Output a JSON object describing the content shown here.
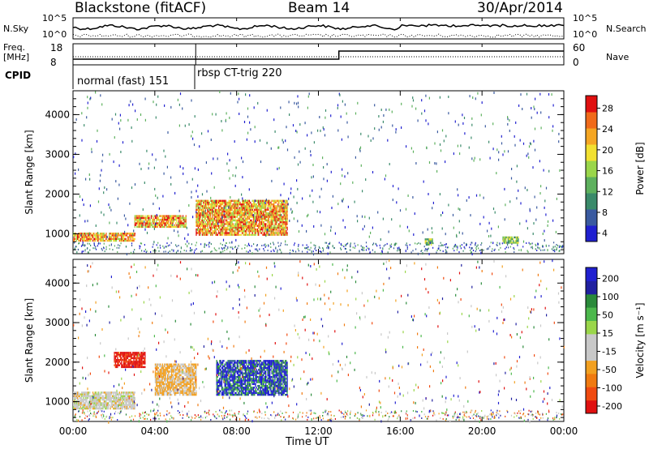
{
  "header": {
    "station": "Blackstone (fitACF)",
    "beam": "Beam 14",
    "date": "30/Apr/2014"
  },
  "panels": {
    "noise": {
      "left_label": "N.Sky",
      "right_label": "N.Search",
      "ticks_left": [
        "10^5",
        "10^0"
      ],
      "ticks_right": [
        "10^5",
        "10^0"
      ]
    },
    "freq": {
      "left_label_1": "Freq.",
      "left_label_2": "[MHz]",
      "right_label": "Nave",
      "ticks_left": [
        "18",
        "8"
      ],
      "ticks_right": [
        "60",
        "0"
      ]
    },
    "cpid": {
      "label": "CPID",
      "segments": [
        "normal (fast) 151",
        "rbsp CT-trig 220"
      ]
    }
  },
  "chart_data": [
    {
      "type": "heatmap",
      "name": "power",
      "ylabel": "Slant Range [km]",
      "yticks": [
        1000,
        2000,
        3000,
        4000
      ],
      "ylim": [
        500,
        4600
      ],
      "xlim": [
        0,
        24
      ],
      "colorbar": {
        "label": "Power [dB]",
        "ticks": [
          "28",
          "24",
          "20",
          "16",
          "12",
          "8",
          "4"
        ],
        "range": [
          0,
          30
        ],
        "colors": [
          "#2020d0",
          "#3a5aa0",
          "#3a8a6a",
          "#5db05d",
          "#9ad64a",
          "#f2e030",
          "#f5a623",
          "#f06a1a",
          "#e01010"
        ]
      },
      "features": [
        {
          "start_h": 0.0,
          "end_h": 3.0,
          "range_start_km": 850,
          "range_end_km": 1050,
          "level": "high"
        },
        {
          "start_h": 3.0,
          "end_h": 5.5,
          "range_start_km": 1200,
          "range_end_km": 1500,
          "level": "high"
        },
        {
          "start_h": 6.0,
          "end_h": 10.5,
          "range_start_km": 1000,
          "range_end_km": 1900,
          "level": "high"
        },
        {
          "start_h": 17.2,
          "end_h": 17.6,
          "range_start_km": 750,
          "range_end_km": 900,
          "level": "mid"
        },
        {
          "start_h": 21.0,
          "end_h": 21.8,
          "range_start_km": 800,
          "range_end_km": 950,
          "level": "mid"
        }
      ]
    },
    {
      "type": "heatmap",
      "name": "velocity",
      "ylabel": "Slant Range [km]",
      "yticks": [
        1000,
        2000,
        3000,
        4000
      ],
      "ylim": [
        500,
        4600
      ],
      "xlim": [
        0,
        24
      ],
      "colorbar": {
        "label": "Velocity [m s⁻¹]",
        "ticks": [
          "200",
          "100",
          "50",
          "15",
          "-15",
          "-50",
          "-100",
          "-200"
        ],
        "range": [
          -250,
          250
        ],
        "colors": [
          "#e01010",
          "#f04a10",
          "#f07a10",
          "#f2a020",
          "#c8c8c8",
          "#c8c8c8",
          "#9ad64a",
          "#4cb84c",
          "#2a8a3a",
          "#2020a0",
          "#2020d0"
        ]
      },
      "features": [
        {
          "start_h": 0.0,
          "end_h": 3.0,
          "range_start_km": 850,
          "range_end_km": 1300,
          "level": "gray"
        },
        {
          "start_h": 2.0,
          "end_h": 3.5,
          "range_start_km": 1900,
          "range_end_km": 2300,
          "level": "red"
        },
        {
          "start_h": 4.0,
          "end_h": 6.0,
          "range_start_km": 1200,
          "range_end_km": 2000,
          "level": "orange"
        },
        {
          "start_h": 7.0,
          "end_h": 10.5,
          "range_start_km": 1200,
          "range_end_km": 2100,
          "level": "blue"
        }
      ]
    }
  ],
  "xaxis": {
    "label": "Time UT",
    "ticks": [
      "00:00",
      "04:00",
      "08:00",
      "12:00",
      "16:00",
      "20:00",
      "00:00"
    ]
  }
}
